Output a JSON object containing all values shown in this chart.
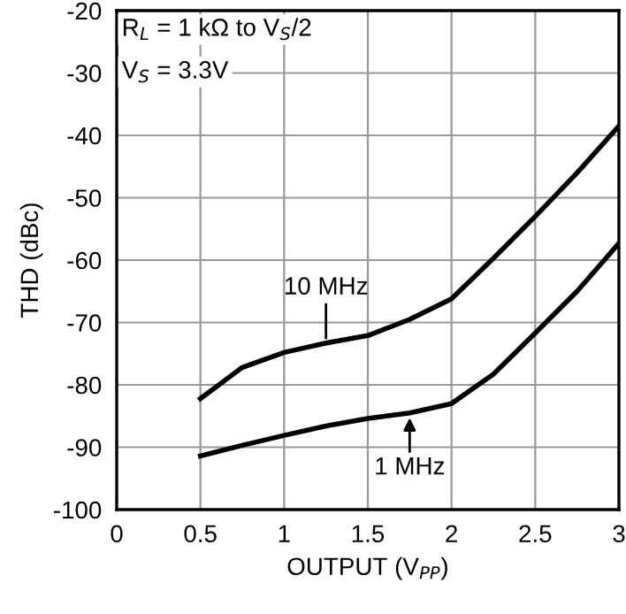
{
  "chart_data": {
    "type": "line",
    "xlabel": "OUTPUT (V$_{PP}$)",
    "ylabel": "THD (dBc)",
    "xlim": [
      0,
      3
    ],
    "ylim": [
      -100,
      -20
    ],
    "xticks": [
      0,
      0.5,
      1,
      1.5,
      2,
      2.5,
      3
    ],
    "yticks": [
      -100,
      -90,
      -80,
      -70,
      -60,
      -50,
      -40,
      -30,
      -20
    ],
    "grid": true,
    "legend": false,
    "marker": "none",
    "line_style": "solid",
    "x": [
      0.5,
      0.75,
      1,
      1.25,
      1.5,
      1.75,
      2,
      2.25,
      2.5,
      2.75,
      3
    ],
    "series": [
      {
        "color": "#000000",
        "values": [
          -82.2,
          -77.2,
          -74.8,
          -73.3,
          -72.1,
          -69.5,
          -66.2,
          -59.7,
          -53,
          -46,
          -38.5
        ]
      },
      {
        "color": "#000000",
        "values": [
          -91.4,
          -89.7,
          -88.1,
          -86.6,
          -85.4,
          -84.5,
          -83,
          -78.3,
          -71.7,
          -65,
          -57.3
        ]
      }
    ],
    "annotations": [
      "R$_{L}$ = 1 kΩ to V$_{S}$/2",
      "V$_{S}$ = 3.3V",
      {
        "text": "10 MHz",
        "x": 1.25,
        "y": -73.3
      },
      {
        "text": "1 MHz",
        "x": 1.75,
        "y": -84.5
      }
    ]
  }
}
